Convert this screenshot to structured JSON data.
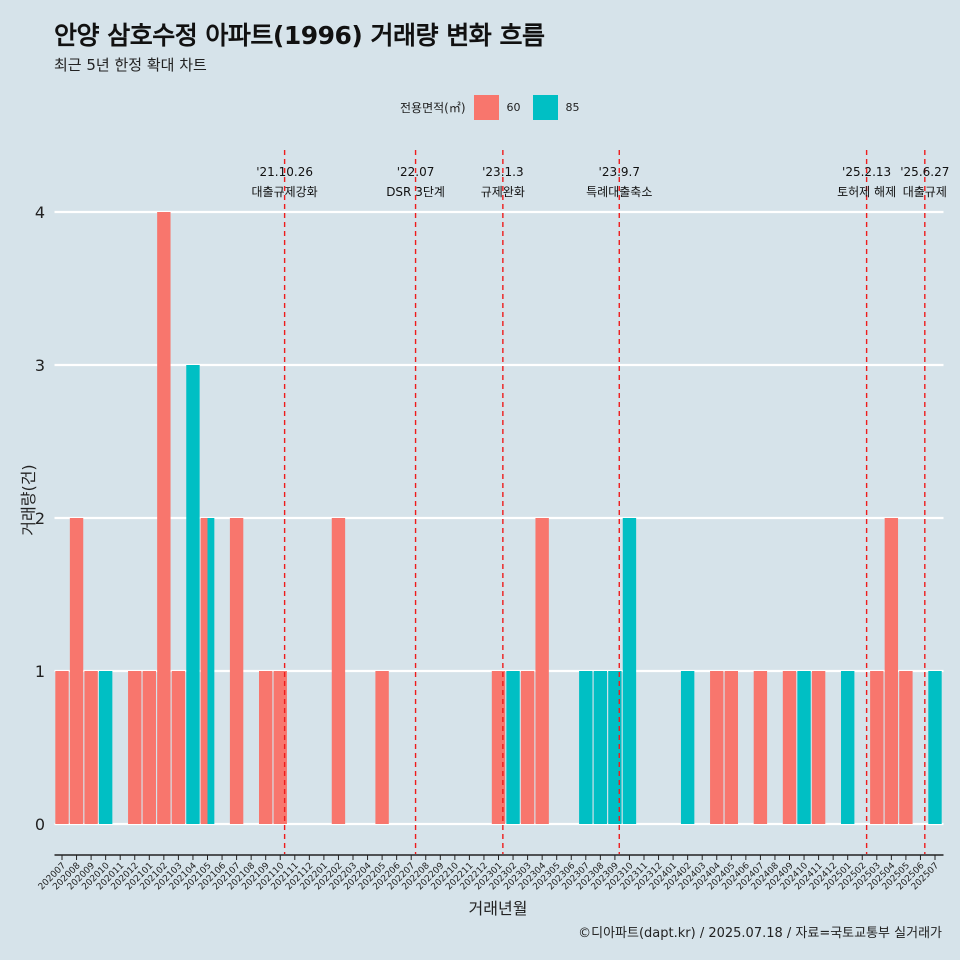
{
  "title": "안양 삼호수정 아파트(1996) 거래량 변화 흐름",
  "subtitle": "최근 5년 한정 확대 차트",
  "legend": {
    "title": "전용면적(㎡)",
    "items": [
      {
        "label": "60",
        "color": "#F8766D"
      },
      {
        "label": "85",
        "color": "#00BFC4"
      }
    ]
  },
  "caption": "©디아파트(dapt.kr) / 2025.07.18 / 자료=국토교통부 실거래가",
  "chart_data": {
    "type": "bar",
    "title": "안양 삼호수정 아파트(1996) 거래량 변화 흐름",
    "xlabel": "거래년월",
    "ylabel": "거래량(건)",
    "ylim": [
      0,
      4
    ],
    "yticks": [
      0,
      1,
      2,
      3,
      4
    ],
    "categories": [
      "202007",
      "202008",
      "202009",
      "202010",
      "202011",
      "202012",
      "202101",
      "202102",
      "202103",
      "202104",
      "202105",
      "202106",
      "202107",
      "202108",
      "202109",
      "202110",
      "202111",
      "202112",
      "202201",
      "202202",
      "202203",
      "202204",
      "202205",
      "202206",
      "202207",
      "202208",
      "202209",
      "202210",
      "202211",
      "202212",
      "202301",
      "202302",
      "202303",
      "202304",
      "202305",
      "202306",
      "202307",
      "202308",
      "202309",
      "202310",
      "202311",
      "202312",
      "202401",
      "202402",
      "202403",
      "202404",
      "202405",
      "202406",
      "202407",
      "202408",
      "202409",
      "202410",
      "202411",
      "202412",
      "202501",
      "202502",
      "202503",
      "202504",
      "202505",
      "202506",
      "202507"
    ],
    "series": [
      {
        "name": "60",
        "color": "#F8766D",
        "values": [
          1,
          2,
          1,
          0,
          0,
          1,
          1,
          4,
          1,
          0,
          2,
          0,
          2,
          0,
          1,
          1,
          0,
          0,
          0,
          2,
          0,
          0,
          1,
          0,
          0,
          0,
          0,
          0,
          0,
          0,
          1,
          0,
          1,
          2,
          0,
          0,
          0,
          0,
          0,
          0,
          0,
          0,
          0,
          0,
          0,
          1,
          1,
          0,
          1,
          0,
          1,
          0,
          1,
          0,
          0,
          0,
          1,
          2,
          1,
          0,
          0
        ]
      },
      {
        "name": "85",
        "color": "#00BFC4",
        "values": [
          0,
          0,
          0,
          1,
          0,
          0,
          0,
          0,
          0,
          3,
          2,
          0,
          0,
          0,
          0,
          0,
          0,
          0,
          0,
          0,
          0,
          0,
          0,
          0,
          0,
          0,
          0,
          0,
          0,
          0,
          0,
          1,
          0,
          0,
          0,
          0,
          1,
          1,
          1,
          2,
          0,
          0,
          0,
          1,
          0,
          0,
          0,
          0,
          0,
          0,
          0,
          1,
          0,
          0,
          1,
          0,
          0,
          0,
          0,
          0,
          1
        ]
      }
    ],
    "annotations": [
      {
        "date": "'21.10.26",
        "label": "대출규제강화",
        "category": "202110"
      },
      {
        "date": "'22.07",
        "label": "DSR 3단계",
        "category": "202207"
      },
      {
        "date": "'23.1.3",
        "label": "규제완화",
        "category": "202301"
      },
      {
        "date": "'23.9.7",
        "label": "특례대출축소",
        "category": "202309"
      },
      {
        "date": "'25.2.13",
        "label": "토허제 해제",
        "category": "202502"
      },
      {
        "date": "'25.6.27",
        "label": "대출규제",
        "category": "202506"
      }
    ]
  }
}
